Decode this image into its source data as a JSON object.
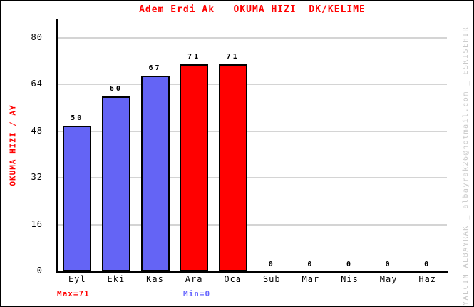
{
  "title": "Adem Erdi Ak   OKUMA HIZI  DK/KELIME",
  "y_axis": {
    "label": "OKUMA HIZI / AY"
  },
  "footer": {
    "max_label": "Max=71",
    "min_label": "Min=0"
  },
  "watermark": "YALCIN ALBAYRAK _ albayrak26@hotmail.com _ ESKISEHIR",
  "colors": {
    "title": "#ff0000",
    "y_axis_label": "#ff0000",
    "grid": "#d4d4d4",
    "axis": "#000000",
    "bar_blue": "#6464f5",
    "bar_red": "#ff0000",
    "max_label": "#ff0000",
    "min_label": "#6666ff",
    "watermark": "#c8c8c8"
  },
  "chart_data": {
    "type": "bar",
    "title": "Adem Erdi Ak   OKUMA HIZI  DK/KELIME",
    "xlabel": "",
    "ylabel": "OKUMA HIZI / AY",
    "ylim": [
      0,
      80
    ],
    "y_ticks": [
      0,
      16,
      32,
      48,
      64,
      80
    ],
    "grid": true,
    "legend": "none",
    "categories": [
      "Eyl",
      "Eki",
      "Kas",
      "Ara",
      "Oca",
      "Sub",
      "Mar",
      "Nis",
      "May",
      "Haz"
    ],
    "values": [
      50,
      60,
      67,
      71,
      71,
      0,
      0,
      0,
      0,
      0
    ],
    "bar_colors": [
      "#6464f5",
      "#6464f5",
      "#6464f5",
      "#ff0000",
      "#ff0000",
      "#6464f5",
      "#6464f5",
      "#6464f5",
      "#6464f5",
      "#6464f5"
    ],
    "annotations": [
      "Max=71",
      "Min=0"
    ]
  }
}
